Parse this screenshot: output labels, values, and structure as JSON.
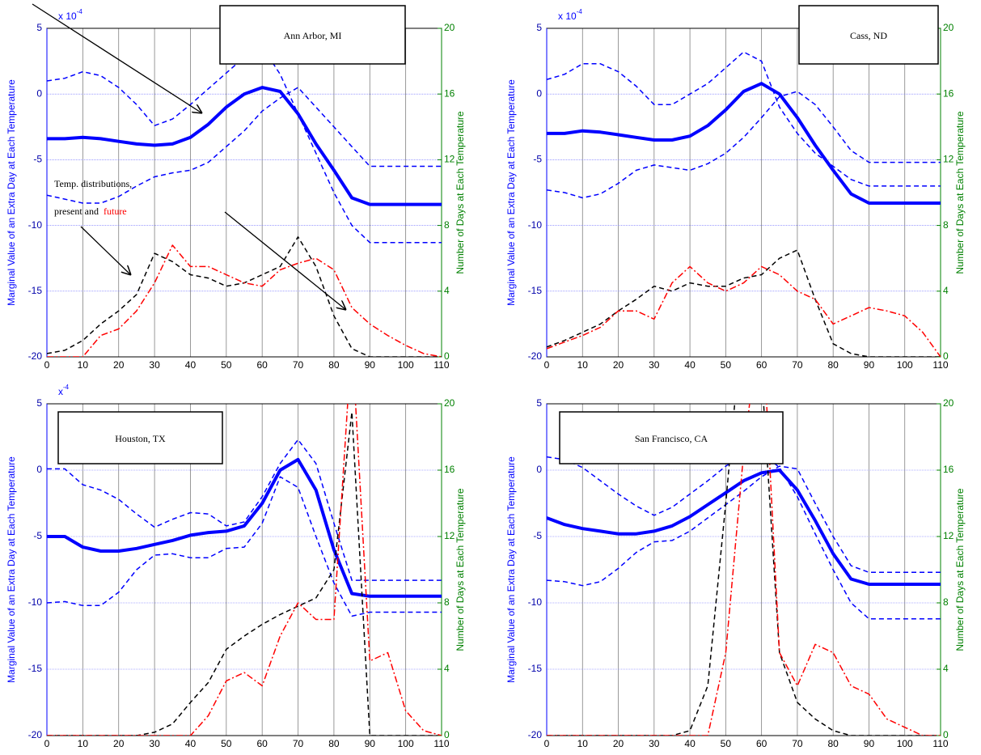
{
  "chart_data": [
    {
      "type": "line",
      "title": "Ann Arbor, MI",
      "y_exponent": {
        "base": "x 10",
        "power": "-4"
      },
      "annotation": {
        "lines": [
          "Temp. distributions,",
          "present and"
        ],
        "highlight": "future",
        "highlight_color": "#ff0000"
      },
      "ylabel": "Marginal Value of an Extra Day at Each Temperature",
      "y2label": "Number of Days at Each Temperature",
      "x": [
        0,
        5,
        10,
        15,
        20,
        25,
        30,
        35,
        40,
        45,
        50,
        55,
        60,
        65,
        70,
        75,
        80,
        85,
        90,
        95,
        100,
        105,
        110
      ],
      "xlim": [
        0,
        110
      ],
      "xticks": [
        0,
        10,
        20,
        30,
        40,
        50,
        60,
        70,
        80,
        90,
        100,
        110
      ],
      "ylim": [
        -20,
        5
      ],
      "yticks": [
        -20,
        -15,
        -10,
        -5,
        0,
        5
      ],
      "y2lim": [
        0,
        20
      ],
      "y2ticks": [
        0,
        4,
        8,
        12,
        16,
        20
      ],
      "grid": true,
      "series": [
        {
          "color": "#0000ff",
          "line_style": "solid",
          "line_width": 4,
          "values": [
            -3.4,
            -3.4,
            -3.3,
            -3.4,
            -3.6,
            -3.8,
            -3.9,
            -3.8,
            -3.3,
            -2.3,
            -1.0,
            0,
            0.5,
            0.2,
            -1.5,
            -3.8,
            -5.8,
            -7.9,
            -8.4,
            -8.4,
            -8.4,
            -8.4,
            -8.4
          ]
        },
        {
          "color": "#0000ff",
          "line_style": "dashed",
          "line_width": 1.5,
          "values": [
            1.0,
            1.2,
            1.7,
            1.4,
            0.5,
            -0.8,
            -2.4,
            -1.9,
            -0.8,
            0.4,
            1.6,
            2.8,
            3.6,
            1.5,
            -1.5,
            -4.5,
            -7.5,
            -10.0,
            -11.3,
            -11.3,
            -11.3,
            -11.3,
            -11.3
          ]
        },
        {
          "color": "#0000ff",
          "line_style": "dashed",
          "line_width": 1.5,
          "values": [
            -7.7,
            -8.0,
            -8.3,
            -8.3,
            -7.8,
            -7.0,
            -6.3,
            -6.0,
            -5.8,
            -5.2,
            -4.0,
            -2.8,
            -1.3,
            -0.3,
            0.5,
            -1.0,
            -2.5,
            -4.0,
            -5.5,
            -5.5,
            -5.5,
            -5.5,
            -5.5
          ]
        },
        {
          "color": "#000000",
          "line_style": "dashed",
          "line_width": 1.5,
          "axis": "y2",
          "values": [
            0.2,
            0.4,
            1.0,
            2.0,
            2.8,
            3.8,
            6.3,
            5.8,
            5.0,
            4.8,
            4.3,
            4.5,
            5.0,
            5.5,
            7.3,
            5.5,
            2.5,
            0.5,
            0,
            0,
            0,
            0,
            0
          ]
        },
        {
          "color": "#ff0000",
          "line_style": "dashdot",
          "line_width": 1.5,
          "axis": "y2",
          "values": [
            0,
            0,
            0,
            1.3,
            1.7,
            2.8,
            4.5,
            6.8,
            5.5,
            5.5,
            5.0,
            4.5,
            4.3,
            5.3,
            5.7,
            6.0,
            5.3,
            3.0,
            2.0,
            1.3,
            0.7,
            0.2,
            0
          ]
        }
      ]
    },
    {
      "type": "line",
      "title": "Cass, ND",
      "y_exponent": {
        "base": "x 10",
        "power": "-4"
      },
      "ylabel": "Marginal Value of an Extra Day at Each Temperature",
      "y2label": "Number of Days at Each Temperature",
      "x": [
        0,
        5,
        10,
        15,
        20,
        25,
        30,
        35,
        40,
        45,
        50,
        55,
        60,
        65,
        70,
        75,
        80,
        85,
        90,
        95,
        100,
        105,
        110
      ],
      "xlim": [
        0,
        110
      ],
      "xticks": [
        0,
        10,
        20,
        30,
        40,
        50,
        60,
        70,
        80,
        90,
        100,
        110
      ],
      "ylim": [
        -20,
        5
      ],
      "yticks": [
        -20,
        -15,
        -10,
        -5,
        0,
        5
      ],
      "y2lim": [
        0,
        20
      ],
      "y2ticks": [
        0,
        4,
        8,
        12,
        16,
        20
      ],
      "grid": true,
      "series": [
        {
          "color": "#0000ff",
          "line_style": "solid",
          "line_width": 4,
          "values": [
            -3.0,
            -3.0,
            -2.8,
            -2.9,
            -3.1,
            -3.3,
            -3.5,
            -3.5,
            -3.2,
            -2.4,
            -1.2,
            0.2,
            0.8,
            0,
            -1.8,
            -3.9,
            -5.8,
            -7.6,
            -8.3,
            -8.3,
            -8.3,
            -8.3,
            -8.3
          ]
        },
        {
          "color": "#0000ff",
          "line_style": "dashed",
          "line_width": 1.5,
          "values": [
            1.1,
            1.5,
            2.3,
            2.3,
            1.7,
            0.6,
            -0.8,
            -0.8,
            0,
            0.8,
            2.0,
            3.2,
            2.5,
            -1.0,
            -3.0,
            -4.5,
            -5.5,
            -6.5,
            -7.0,
            -7.0,
            -7.0,
            -7.0,
            -7.0
          ]
        },
        {
          "color": "#0000ff",
          "line_style": "dashed",
          "line_width": 1.5,
          "values": [
            -7.3,
            -7.5,
            -7.9,
            -7.6,
            -6.8,
            -5.8,
            -5.4,
            -5.6,
            -5.8,
            -5.3,
            -4.5,
            -3.3,
            -1.8,
            -0.2,
            0.2,
            -0.8,
            -2.5,
            -4.3,
            -5.2,
            -5.2,
            -5.2,
            -5.2,
            -5.2
          ]
        },
        {
          "color": "#000000",
          "line_style": "dashed",
          "line_width": 1.5,
          "axis": "y2",
          "values": [
            0.6,
            1.0,
            1.5,
            2.0,
            2.8,
            3.5,
            4.3,
            4.0,
            4.5,
            4.3,
            4.3,
            4.8,
            5.0,
            6.0,
            6.5,
            3.5,
            0.8,
            0.2,
            0,
            0,
            0,
            0,
            0
          ]
        },
        {
          "color": "#ff0000",
          "line_style": "dashdot",
          "line_width": 1.5,
          "axis": "y2",
          "values": [
            0.5,
            0.9,
            1.3,
            1.8,
            2.8,
            2.8,
            2.3,
            4.5,
            5.5,
            4.5,
            4.0,
            4.5,
            5.5,
            5.0,
            4.0,
            3.5,
            2.0,
            2.5,
            3.0,
            2.8,
            2.5,
            1.5,
            0
          ]
        }
      ]
    },
    {
      "type": "line",
      "title": "Houston, TX",
      "y_exponent": {
        "base": "x",
        "power": "-4"
      },
      "ylabel": "Marginal Value of an Extra Day at Each Temperature",
      "y2label": "Number of Days at Each Temperature",
      "x": [
        0,
        5,
        10,
        15,
        20,
        25,
        30,
        35,
        40,
        45,
        50,
        55,
        60,
        65,
        70,
        75,
        80,
        85,
        90,
        95,
        100,
        105,
        110
      ],
      "xlim": [
        0,
        110
      ],
      "xticks": [
        0,
        10,
        20,
        30,
        40,
        50,
        60,
        70,
        80,
        90,
        100,
        110
      ],
      "ylim": [
        -20,
        5
      ],
      "yticks": [
        -20,
        -15,
        -10,
        -5,
        0,
        5
      ],
      "y2lim": [
        0,
        20
      ],
      "y2ticks": [
        0,
        4,
        8,
        12,
        16,
        20
      ],
      "grid": true,
      "series": [
        {
          "color": "#0000ff",
          "line_style": "solid",
          "line_width": 4,
          "values": [
            -5.0,
            -5.0,
            -5.8,
            -6.1,
            -6.1,
            -5.9,
            -5.6,
            -5.3,
            -4.9,
            -4.7,
            -4.6,
            -4.2,
            -2.5,
            0.0,
            0.8,
            -1.5,
            -6.0,
            -9.3,
            -9.5,
            -9.5,
            -9.5,
            -9.5,
            -9.5
          ]
        },
        {
          "color": "#0000ff",
          "line_style": "dashed",
          "line_width": 1.5,
          "values": [
            0.1,
            0.1,
            -1.1,
            -1.5,
            -2.2,
            -3.3,
            -4.3,
            -3.7,
            -3.2,
            -3.3,
            -4.2,
            -3.9,
            -2.0,
            0.5,
            2.3,
            0.5,
            -4.0,
            -8.3,
            -8.3,
            -8.3,
            -8.3,
            -8.3,
            -8.3
          ]
        },
        {
          "color": "#0000ff",
          "line_style": "dashed",
          "line_width": 1.5,
          "values": [
            -10.0,
            -9.9,
            -10.2,
            -10.2,
            -9.2,
            -7.5,
            -6.4,
            -6.3,
            -6.6,
            -6.6,
            -5.9,
            -5.8,
            -4.0,
            -0.5,
            -1.3,
            -5.0,
            -8.5,
            -11.0,
            -10.7,
            -10.7,
            -10.7,
            -10.7,
            -10.7
          ]
        },
        {
          "color": "#000000",
          "line_style": "dashed",
          "line_width": 1.5,
          "axis": "y2",
          "values": [
            0,
            0,
            0,
            0,
            0,
            0,
            0.2,
            0.7,
            2.0,
            3.2,
            5.2,
            6.0,
            6.7,
            7.3,
            7.8,
            8.3,
            10.0,
            19.5,
            0,
            0,
            0,
            0,
            0
          ]
        },
        {
          "color": "#ff0000",
          "line_style": "dashdot",
          "line_width": 1.5,
          "axis": "y2",
          "values": [
            0,
            0,
            0,
            0,
            0,
            0,
            0,
            0,
            0,
            1.2,
            3.3,
            3.8,
            3.0,
            6.0,
            8.0,
            7.0,
            7.0,
            24,
            4.5,
            5.0,
            1.5,
            0.3,
            0
          ]
        }
      ]
    },
    {
      "type": "line",
      "title": "San Francisco, CA",
      "ylabel": "Marginal Value of an Extra Day at Each Temperature",
      "y2label": "Number of Days at Each Temperature",
      "x": [
        0,
        5,
        10,
        15,
        20,
        25,
        30,
        35,
        40,
        45,
        50,
        55,
        60,
        65,
        70,
        75,
        80,
        85,
        90,
        95,
        100,
        105,
        110
      ],
      "xlim": [
        0,
        110
      ],
      "xticks": [
        0,
        10,
        20,
        30,
        40,
        50,
        60,
        70,
        80,
        90,
        100,
        110
      ],
      "ylim": [
        -20,
        5
      ],
      "yticks": [
        -20,
        -15,
        -10,
        -5,
        0,
        5
      ],
      "y2lim": [
        0,
        20
      ],
      "y2ticks": [
        0,
        4,
        8,
        12,
        16,
        20
      ],
      "grid": true,
      "series": [
        {
          "color": "#0000ff",
          "line_style": "solid",
          "line_width": 4,
          "values": [
            -3.6,
            -4.1,
            -4.4,
            -4.6,
            -4.8,
            -4.8,
            -4.6,
            -4.2,
            -3.5,
            -2.6,
            -1.7,
            -0.8,
            -0.2,
            0.0,
            -1.5,
            -3.8,
            -6.3,
            -8.2,
            -8.6,
            -8.6,
            -8.6,
            -8.6,
            -8.6
          ]
        },
        {
          "color": "#0000ff",
          "line_style": "dashed",
          "line_width": 1.5,
          "values": [
            1.0,
            0.8,
            0.2,
            -0.8,
            -1.8,
            -2.7,
            -3.4,
            -2.8,
            -1.8,
            -0.8,
            0.3,
            1.2,
            1.3,
            0.2,
            -2.0,
            -4.8,
            -7.5,
            -10.0,
            -11.2,
            -11.2,
            -11.2,
            -11.2,
            -11.2
          ]
        },
        {
          "color": "#0000ff",
          "line_style": "dashed",
          "line_width": 1.5,
          "values": [
            -8.3,
            -8.4,
            -8.7,
            -8.4,
            -7.4,
            -6.2,
            -5.4,
            -5.3,
            -4.6,
            -3.6,
            -2.6,
            -1.6,
            -0.5,
            0.3,
            0.1,
            -2.5,
            -5.0,
            -7.2,
            -7.7,
            -7.7,
            -7.7,
            -7.7,
            -7.7
          ]
        },
        {
          "color": "#000000",
          "line_style": "dashed",
          "line_width": 1.5,
          "axis": "y2",
          "values": [
            0,
            0,
            0,
            0,
            0,
            0,
            0,
            0,
            0.3,
            3.0,
            14,
            26,
            22,
            5,
            2,
            1.0,
            0.3,
            0,
            0,
            0,
            0,
            0,
            0
          ]
        },
        {
          "color": "#ff0000",
          "line_style": "dashdot",
          "line_width": 1.5,
          "axis": "y2",
          "values": [
            0,
            0,
            0,
            0,
            0,
            0,
            0,
            0,
            0,
            0,
            5,
            17,
            26,
            5,
            3.0,
            5.5,
            5.0,
            3.0,
            2.5,
            1.0,
            0.5,
            0,
            0
          ]
        }
      ]
    }
  ]
}
